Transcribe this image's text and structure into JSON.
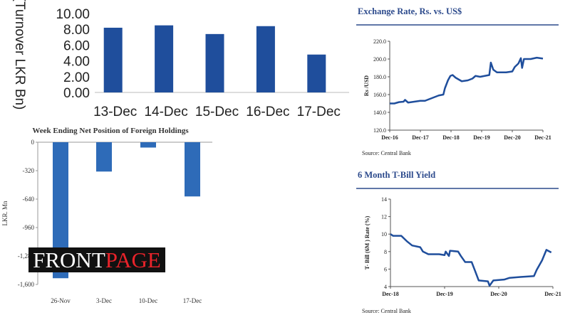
{
  "chart_data": [
    {
      "type": "bar",
      "id": "turnover",
      "title": "",
      "ylabel": "(Turnover LKR Bn)",
      "xlabel": "",
      "categories": [
        "13-Dec",
        "14-Dec",
        "15-Dec",
        "16-Dec",
        "17-Dec"
      ],
      "values": [
        8.2,
        8.5,
        7.4,
        8.4,
        4.8
      ],
      "ylim": [
        0,
        10
      ],
      "yticks": [
        "0.00",
        "2.00",
        "4.00",
        "6.00",
        "8.00",
        "10.00"
      ],
      "color": "#1f4e9c"
    },
    {
      "type": "bar",
      "id": "foreign",
      "title": "Week Ending Net Position of Foreign Holdings",
      "ylabel": "LKR. Mn",
      "categories": [
        "26-Nov",
        "3-Dec",
        "10-Dec",
        "17-Dec"
      ],
      "values": [
        -1530,
        -330,
        -60,
        -610
      ],
      "ylim": [
        -1600,
        0
      ],
      "yticks": [
        "0",
        "-320",
        "-640",
        "-960",
        "-1,280",
        "-1,600"
      ],
      "color": "#2e6bb8"
    },
    {
      "type": "line",
      "id": "fx",
      "title": "Exchange Rate, Rs. vs. US$",
      "ylabel": "Rs /USD",
      "xticks": [
        "Dec-16",
        "Dec-17",
        "Dec-18",
        "Dec-19",
        "Dec-20",
        "Dec-21"
      ],
      "yticks": [
        "120.0",
        "140.0",
        "160.0",
        "180.0",
        "200.0",
        "220.0"
      ],
      "ylim": [
        120,
        220
      ],
      "xlim_years_from_start": [
        0,
        5
      ],
      "series": [
        {
          "name": "Rs/USD",
          "points": [
            [
              0,
              150
            ],
            [
              0.15,
              150
            ],
            [
              0.3,
              151.5
            ],
            [
              0.45,
              152
            ],
            [
              0.5,
              154
            ],
            [
              0.6,
              151
            ],
            [
              0.8,
              152
            ],
            [
              1.0,
              153
            ],
            [
              1.15,
              153
            ],
            [
              1.3,
              155
            ],
            [
              1.45,
              157
            ],
            [
              1.6,
              159
            ],
            [
              1.75,
              160
            ],
            [
              1.8,
              167
            ],
            [
              1.9,
              176
            ],
            [
              1.98,
              181
            ],
            [
              2.05,
              182
            ],
            [
              2.15,
              179
            ],
            [
              2.25,
              177
            ],
            [
              2.35,
              175
            ],
            [
              2.55,
              176
            ],
            [
              2.7,
              178
            ],
            [
              2.8,
              181
            ],
            [
              2.95,
              180
            ],
            [
              3.1,
              181
            ],
            [
              3.25,
              182
            ],
            [
              3.3,
              196
            ],
            [
              3.38,
              188
            ],
            [
              3.5,
              185
            ],
            [
              3.65,
              185
            ],
            [
              3.8,
              185
            ],
            [
              4.0,
              186
            ],
            [
              4.08,
              191
            ],
            [
              4.2,
              195
            ],
            [
              4.28,
              201
            ],
            [
              4.32,
              190
            ],
            [
              4.38,
              200
            ],
            [
              4.6,
              200
            ],
            [
              4.8,
              201.5
            ],
            [
              5.0,
              200.5
            ]
          ]
        }
      ],
      "source": "Source: Central Bank",
      "color": "#1f4e9c"
    },
    {
      "type": "line",
      "id": "tbill",
      "title": "6 Month T-Bill Yield",
      "ylabel": "T- Bill (6M ) Rate (%)",
      "xticks": [
        "Dec-18",
        "Dec-19",
        "Dec-20",
        "Dec-21"
      ],
      "yticks": [
        "4",
        "6",
        "8",
        "10",
        "12",
        "14"
      ],
      "ylim": [
        4,
        14
      ],
      "xlim_years_from_start": [
        0,
        3
      ],
      "series": [
        {
          "name": "6M T-Bill",
          "points": [
            [
              0,
              10
            ],
            [
              0.05,
              9.8
            ],
            [
              0.2,
              9.8
            ],
            [
              0.3,
              9.2
            ],
            [
              0.4,
              8.7
            ],
            [
              0.55,
              8.5
            ],
            [
              0.6,
              8
            ],
            [
              0.7,
              7.7
            ],
            [
              0.9,
              7.7
            ],
            [
              1.0,
              7.6
            ],
            [
              1.02,
              8
            ],
            [
              1.08,
              7.5
            ],
            [
              1.1,
              8.1
            ],
            [
              1.25,
              8
            ],
            [
              1.3,
              7.5
            ],
            [
              1.38,
              6.8
            ],
            [
              1.5,
              6.8
            ],
            [
              1.55,
              6
            ],
            [
              1.63,
              4.7
            ],
            [
              1.8,
              4.6
            ],
            [
              1.83,
              4.1
            ],
            [
              1.9,
              4.7
            ],
            [
              2.1,
              4.8
            ],
            [
              2.2,
              5
            ],
            [
              2.4,
              5.1
            ],
            [
              2.65,
              5.2
            ],
            [
              2.7,
              5.9
            ],
            [
              2.8,
              7
            ],
            [
              2.88,
              8.2
            ],
            [
              2.97,
              7.9
            ]
          ]
        }
      ],
      "source": "Source: Central Bank",
      "color": "#1f4e9c"
    }
  ],
  "logo": {
    "part1": "FRONT",
    "part2": "PAGE"
  }
}
